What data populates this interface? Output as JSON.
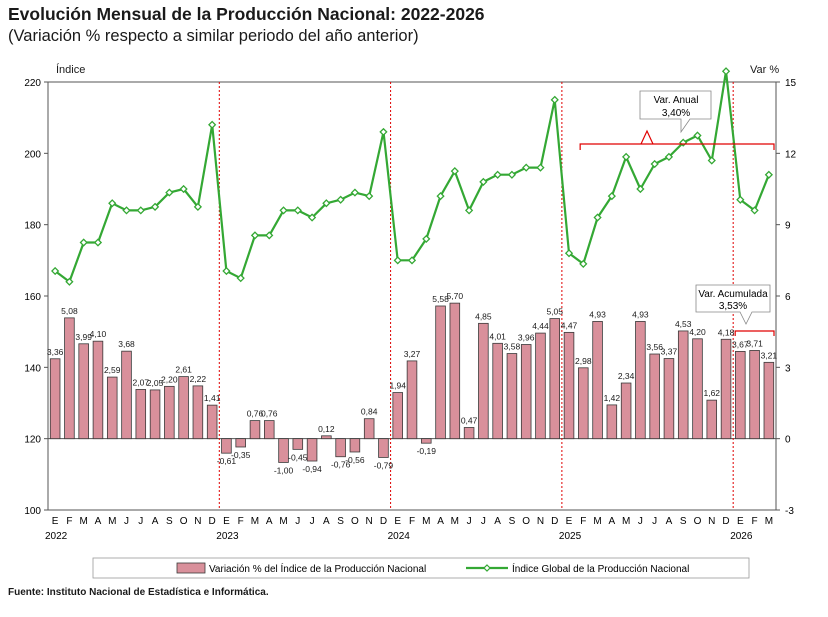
{
  "title": "Evolución Mensual de la Producción Nacional: 2022-2026",
  "subtitle": "(Variación % respecto a similar periodo del año anterior)",
  "source": "Fuente: Instituto Nacional de Estadística e Informática.",
  "colors": {
    "bar_fill": "#d9909b",
    "bar_stroke": "#3a3a3a",
    "line": "#34a834",
    "marker_fill": "#ffffff",
    "year_divider": "#e00000",
    "annotation": "#e00000"
  },
  "chart_data": {
    "type": "bar",
    "title": "Evolución Mensual de la Producción Nacional: 2022-2026",
    "left_axis": {
      "label": "Índice",
      "ylim": [
        100,
        220
      ],
      "ticks": [
        100,
        120,
        140,
        160,
        180,
        200,
        220
      ]
    },
    "right_axis": {
      "label": "Var %",
      "ylim": [
        -3,
        15
      ],
      "ticks": [
        -3,
        0,
        3,
        6,
        9,
        12,
        15
      ]
    },
    "month_letters": [
      "E",
      "F",
      "M",
      "A",
      "M",
      "J",
      "J",
      "A",
      "S",
      "O",
      "N",
      "D",
      "E",
      "F",
      "M",
      "A",
      "M",
      "J",
      "J",
      "A",
      "S",
      "O",
      "N",
      "D",
      "E",
      "F",
      "M",
      "A",
      "M",
      "J",
      "J",
      "A",
      "S",
      "O",
      "N",
      "D",
      "E",
      "F",
      "M",
      "A",
      "M",
      "J",
      "J",
      "A",
      "S",
      "O",
      "N",
      "D",
      "E",
      "F",
      "M"
    ],
    "years": [
      {
        "label": "2022",
        "start_index": 0
      },
      {
        "label": "2023",
        "start_index": 12
      },
      {
        "label": "2024",
        "start_index": 24
      },
      {
        "label": "2025",
        "start_index": 36
      },
      {
        "label": "2026",
        "start_index": 48
      }
    ],
    "series": [
      {
        "name": "Variación % del Índice de la Producción Nacional",
        "type": "bar",
        "axis": "right",
        "values": [
          3.36,
          5.08,
          3.99,
          4.1,
          2.59,
          3.68,
          2.07,
          2.05,
          2.2,
          2.61,
          2.22,
          1.41,
          -0.61,
          -0.35,
          0.76,
          0.76,
          -1.0,
          -0.45,
          -0.94,
          0.12,
          -0.76,
          -0.56,
          0.84,
          -0.79,
          1.94,
          3.27,
          -0.19,
          5.58,
          5.7,
          0.47,
          4.85,
          4.01,
          3.58,
          3.96,
          4.44,
          5.05,
          4.47,
          2.98,
          4.93,
          1.42,
          2.34,
          4.93,
          3.56,
          3.37,
          4.53,
          4.2,
          1.62,
          4.18,
          3.67,
          3.71,
          3.21
        ],
        "labels": [
          "3,36",
          "5,08",
          "3,99",
          "4,10",
          "2,59",
          "3,68",
          "2,07",
          "2,05",
          "2,20",
          "2,61",
          "2,22",
          "1,41",
          "-0,61",
          "-0,35",
          "0,76",
          "0,76",
          "-1,00",
          "-0,45",
          "-0,94",
          "0,12",
          "-0,76",
          "-0,56",
          "0,84",
          "-0,79",
          "1,94",
          "3,27",
          "-0,19",
          "5,58",
          "5,70",
          "0,47",
          "4,85",
          "4,01",
          "3,58",
          "3,96",
          "4,44",
          "5,05",
          "4,47",
          "2,98",
          "4,93",
          "1,42",
          "2,34",
          "4,93",
          "3,56",
          "3,37",
          "4,53",
          "4,20",
          "1,62",
          "4,18",
          "3,67",
          "3,71",
          "3,21"
        ]
      },
      {
        "name": "Índice Global de la Producción Nacional",
        "type": "line",
        "axis": "left",
        "values": [
          167,
          164,
          175,
          175,
          186,
          184,
          184,
          185,
          189,
          190,
          185,
          208,
          167,
          165,
          177,
          177,
          184,
          184,
          182,
          186,
          187,
          189,
          188,
          206,
          170,
          170,
          176,
          188,
          195,
          184,
          192,
          194,
          194,
          196,
          196,
          215,
          172,
          169,
          182,
          188,
          199,
          190,
          197,
          199,
          203,
          205,
          198,
          223,
          187,
          184,
          194
        ]
      }
    ],
    "annotations": [
      {
        "label": "Var. Anual",
        "value": "3,40%",
        "from_index": 37,
        "to_index": 50
      },
      {
        "label": "Var. Acumulada",
        "value": "3,53%",
        "from_index": 48,
        "to_index": 50
      }
    ]
  }
}
